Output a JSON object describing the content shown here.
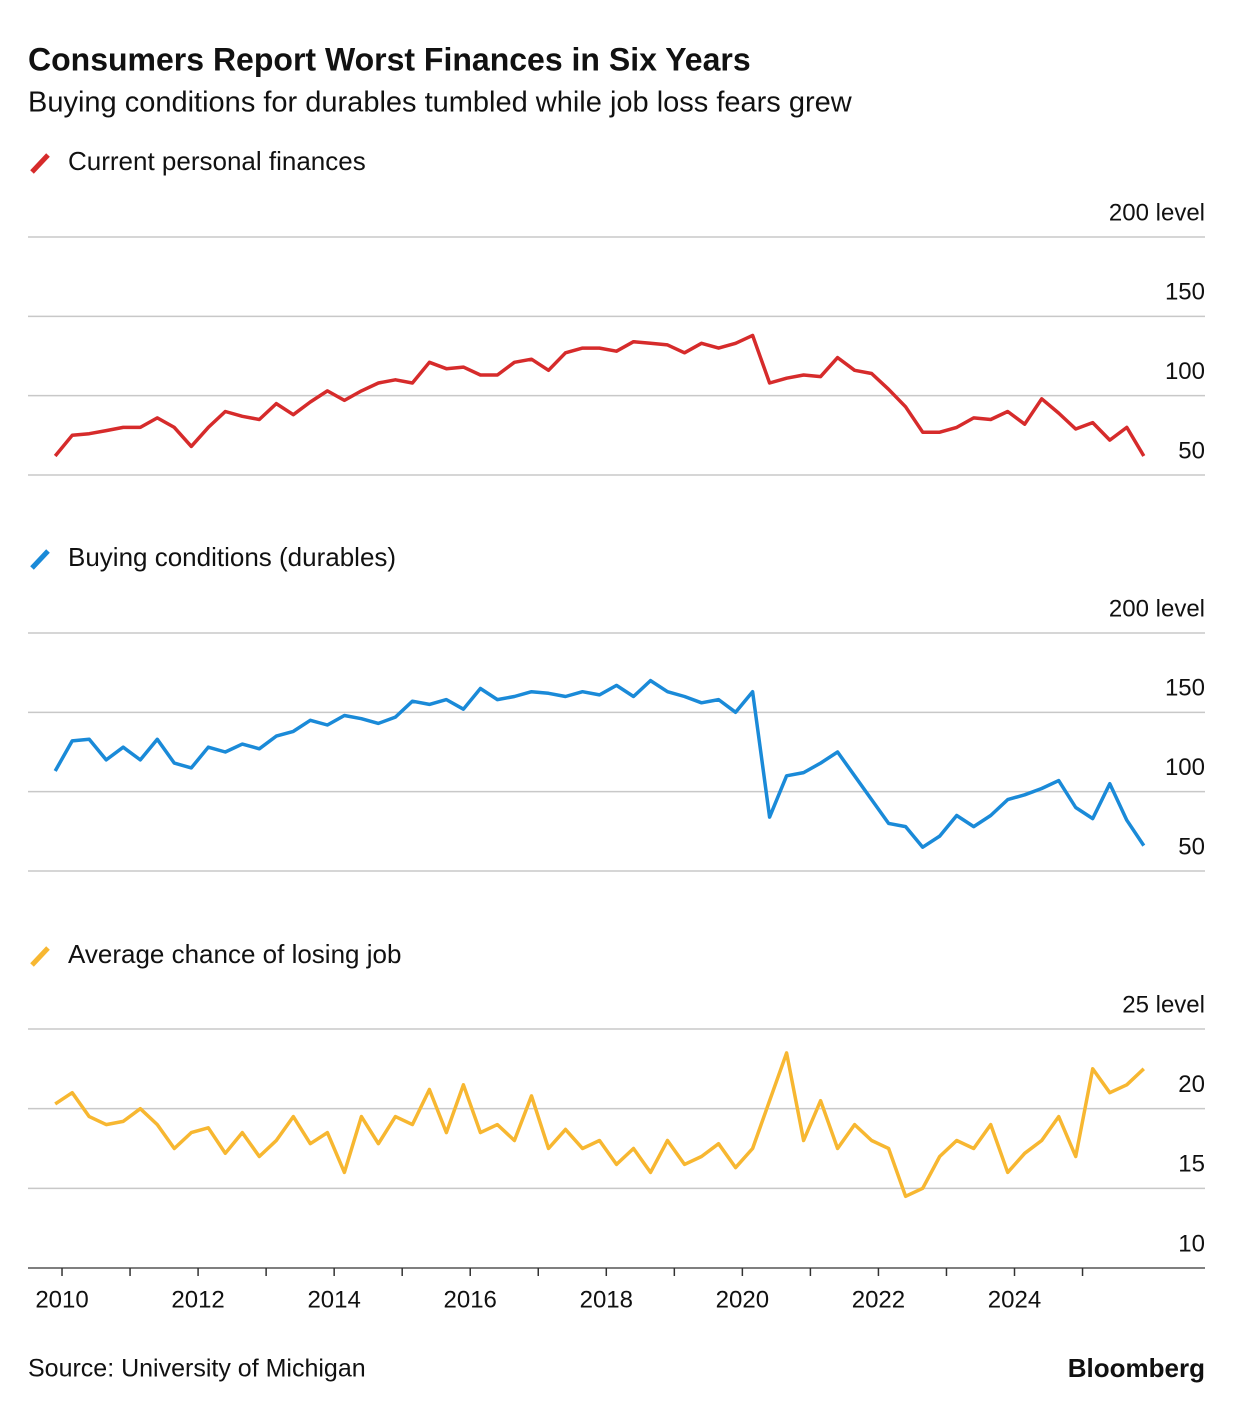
{
  "title": "Consumers Report Worst Finances in Six Years",
  "subtitle": "Buying conditions for durables tumbled while job loss fears grew",
  "source": "Source: University of Michigan",
  "credit": "Bloomberg",
  "chart_data": [
    {
      "type": "line",
      "title": "Current personal finances",
      "color": "#d62b2b",
      "x": [
        2009.9,
        2010.15,
        2010.4,
        2010.65,
        2010.9,
        2011.15,
        2011.4,
        2011.65,
        2011.9,
        2012.15,
        2012.4,
        2012.65,
        2012.9,
        2013.15,
        2013.4,
        2013.65,
        2013.9,
        2014.15,
        2014.4,
        2014.65,
        2014.9,
        2015.15,
        2015.4,
        2015.65,
        2015.9,
        2016.15,
        2016.4,
        2016.65,
        2016.9,
        2017.15,
        2017.4,
        2017.65,
        2017.9,
        2018.15,
        2018.4,
        2018.65,
        2018.9,
        2019.15,
        2019.4,
        2019.65,
        2019.9,
        2020.15,
        2020.4,
        2020.65,
        2020.9,
        2021.15,
        2021.4,
        2021.65,
        2021.9,
        2022.15,
        2022.4,
        2022.65,
        2022.9,
        2023.15,
        2023.4,
        2023.65,
        2023.9,
        2024.15,
        2024.4,
        2024.65,
        2024.9,
        2025.15,
        2025.4,
        2025.65,
        2025.9
      ],
      "values": [
        62,
        75,
        76,
        78,
        80,
        80,
        86,
        80,
        68,
        80,
        90,
        87,
        85,
        95,
        88,
        96,
        103,
        97,
        103,
        108,
        110,
        108,
        121,
        117,
        118,
        113,
        113,
        121,
        123,
        116,
        127,
        130,
        130,
        128,
        134,
        133,
        132,
        127,
        133,
        130,
        133,
        138,
        108,
        111,
        113,
        112,
        124,
        116,
        114,
        104,
        93,
        77,
        77,
        80,
        86,
        85,
        90,
        82,
        98,
        89,
        79,
        83,
        72,
        80,
        62
      ],
      "xlim": [
        2009.5,
        2026.8
      ],
      "ylim": [
        50,
        200
      ],
      "yticks": [
        {
          "value": 200,
          "label": "200 level"
        },
        150,
        100,
        50
      ]
    },
    {
      "type": "line",
      "title": "Buying conditions (durables)",
      "color": "#1a8ad8",
      "x": [
        2009.9,
        2010.15,
        2010.4,
        2010.65,
        2010.9,
        2011.15,
        2011.4,
        2011.65,
        2011.9,
        2012.15,
        2012.4,
        2012.65,
        2012.9,
        2013.15,
        2013.4,
        2013.65,
        2013.9,
        2014.15,
        2014.4,
        2014.65,
        2014.9,
        2015.15,
        2015.4,
        2015.65,
        2015.9,
        2016.15,
        2016.4,
        2016.65,
        2016.9,
        2017.15,
        2017.4,
        2017.65,
        2017.9,
        2018.15,
        2018.4,
        2018.65,
        2018.9,
        2019.15,
        2019.4,
        2019.65,
        2019.9,
        2020.15,
        2020.4,
        2020.65,
        2020.9,
        2021.15,
        2021.4,
        2021.65,
        2021.9,
        2022.15,
        2022.4,
        2022.65,
        2022.9,
        2023.15,
        2023.4,
        2023.65,
        2023.9,
        2024.15,
        2024.4,
        2024.65,
        2024.9,
        2025.15,
        2025.4,
        2025.65,
        2025.9
      ],
      "values": [
        113,
        132,
        133,
        120,
        128,
        120,
        133,
        118,
        115,
        128,
        125,
        130,
        127,
        135,
        138,
        145,
        142,
        148,
        146,
        143,
        147,
        157,
        155,
        158,
        152,
        165,
        158,
        160,
        163,
        162,
        160,
        163,
        161,
        167,
        160,
        170,
        163,
        160,
        156,
        158,
        150,
        163,
        84,
        110,
        112,
        118,
        125,
        110,
        95,
        80,
        78,
        65,
        72,
        85,
        78,
        85,
        95,
        98,
        102,
        107,
        90,
        83,
        105,
        82,
        66
      ],
      "xlim": [
        2009.5,
        2026.8
      ],
      "ylim": [
        50,
        200
      ],
      "yticks": [
        {
          "value": 200,
          "label": "200 level"
        },
        150,
        100,
        50
      ]
    },
    {
      "type": "line",
      "title": "Average chance of losing job",
      "color": "#f7b731",
      "x": [
        2009.9,
        2010.15,
        2010.4,
        2010.65,
        2010.9,
        2011.15,
        2011.4,
        2011.65,
        2011.9,
        2012.15,
        2012.4,
        2012.65,
        2012.9,
        2013.15,
        2013.4,
        2013.65,
        2013.9,
        2014.15,
        2014.4,
        2014.65,
        2014.9,
        2015.15,
        2015.4,
        2015.65,
        2015.9,
        2016.15,
        2016.4,
        2016.65,
        2016.9,
        2017.15,
        2017.4,
        2017.65,
        2017.9,
        2018.15,
        2018.4,
        2018.65,
        2018.9,
        2019.15,
        2019.4,
        2019.65,
        2019.9,
        2020.15,
        2020.4,
        2020.65,
        2020.9,
        2021.15,
        2021.4,
        2021.65,
        2021.9,
        2022.15,
        2022.4,
        2022.65,
        2022.9,
        2023.15,
        2023.4,
        2023.65,
        2023.9,
        2024.15,
        2024.4,
        2024.65,
        2024.9,
        2025.15,
        2025.4,
        2025.65,
        2025.9
      ],
      "values": [
        20.3,
        21.0,
        19.5,
        19.0,
        19.2,
        20.0,
        19.0,
        17.5,
        18.5,
        18.8,
        17.2,
        18.5,
        17.0,
        18.0,
        19.5,
        17.8,
        18.5,
        16.0,
        19.5,
        17.8,
        19.5,
        19.0,
        21.2,
        18.5,
        21.5,
        18.5,
        19.0,
        18.0,
        20.8,
        17.5,
        18.7,
        17.5,
        18.0,
        16.5,
        17.5,
        16.0,
        18.0,
        16.5,
        17.0,
        17.8,
        16.3,
        17.5,
        20.5,
        23.5,
        18.0,
        20.5,
        17.5,
        19.0,
        18.0,
        17.5,
        14.5,
        15.0,
        17.0,
        18.0,
        17.5,
        19.0,
        16.0,
        17.2,
        18.0,
        19.5,
        17.0,
        22.5,
        21.0,
        21.5,
        22.5
      ],
      "xlim": [
        2009.5,
        2026.8
      ],
      "ylim": [
        10,
        25
      ],
      "yticks": [
        {
          "value": 25,
          "label": "25 level"
        },
        20,
        15,
        10
      ],
      "xticks": [
        2010,
        2012,
        2014,
        2016,
        2018,
        2020,
        2022,
        2024
      ],
      "minor_xticks": [
        2011,
        2013,
        2015,
        2017,
        2019,
        2021,
        2023,
        2025
      ]
    }
  ]
}
